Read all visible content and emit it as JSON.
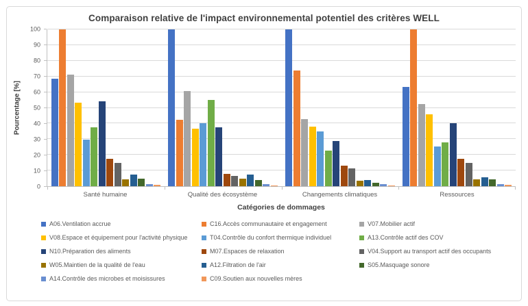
{
  "figure": {
    "background": "#ffffff",
    "border_color": "#d9d9d9"
  },
  "chart_data": {
    "type": "bar",
    "title": "Comparaison relative de l'impact environnemental potentiel des critères WELL",
    "xlabel": "Catégories de dommages",
    "ylabel": "Pourcentage [%]",
    "ylim": [
      0,
      100
    ],
    "ytick_step": 10,
    "grid": true,
    "legend_position": "bottom",
    "legend_columns": 3,
    "categories": [
      "Santé humaine",
      "Qualité des écosystème",
      "Changements climatiques",
      "Ressources"
    ],
    "series": [
      {
        "name": "A06.Ventilation accrue",
        "color": "#4472C4",
        "values": [
          68.5,
          100,
          100,
          63.5
        ]
      },
      {
        "name": "C16.Accès communautaire et engagement",
        "color": "#ED7D31",
        "values": [
          100,
          42.5,
          74,
          100
        ]
      },
      {
        "name": "V07.Mobilier actif",
        "color": "#A5A5A5",
        "values": [
          71,
          60.5,
          43,
          52.5
        ]
      },
      {
        "name": "V08.Espace et équipement pour l'activité physique",
        "color": "#FFC000",
        "values": [
          53.5,
          36.5,
          38,
          46
        ]
      },
      {
        "name": "T04.Contrôle du confort thermique individuel",
        "color": "#5B9BD5",
        "values": [
          29.5,
          40,
          35,
          25.5
        ]
      },
      {
        "name": "A13.Contrôle actif des COV",
        "color": "#70AD47",
        "values": [
          37.5,
          55,
          22.5,
          28
        ]
      },
      {
        "name": "N10.Préparation des aliments",
        "color": "#264478",
        "values": [
          54,
          37.5,
          29,
          40
        ]
      },
      {
        "name": "M07.Espaces de relaxation",
        "color": "#9E480E",
        "values": [
          17.5,
          8,
          13,
          17.5
        ]
      },
      {
        "name": "V04.Support au transport actif des occupants",
        "color": "#636363",
        "values": [
          15,
          6.5,
          11.5,
          15
        ]
      },
      {
        "name": "W05.Maintien de la qualité de l'eau",
        "color": "#997300",
        "values": [
          4.5,
          5,
          3.5,
          4.5
        ]
      },
      {
        "name": "A12.Filtration de l'air",
        "color": "#255E91",
        "values": [
          7.5,
          7.5,
          4,
          5.5
        ]
      },
      {
        "name": "S05.Masquage sonore",
        "color": "#43682B",
        "values": [
          5,
          4,
          2,
          4.5
        ]
      },
      {
        "name": "A14.Contrôle des microbes et moisissures",
        "color": "#698ED0",
        "values": [
          1.5,
          1.5,
          1.5,
          1.5
        ]
      },
      {
        "name": "C09.Soutien aux nouvelles mères",
        "color": "#F1975A",
        "values": [
          1,
          0.5,
          0.5,
          1
        ]
      }
    ],
    "style": {
      "title_text": "#404040",
      "axis_text": "#595959",
      "gridline": "#d9d9d9",
      "axis_line": "#bfbfbf"
    }
  }
}
